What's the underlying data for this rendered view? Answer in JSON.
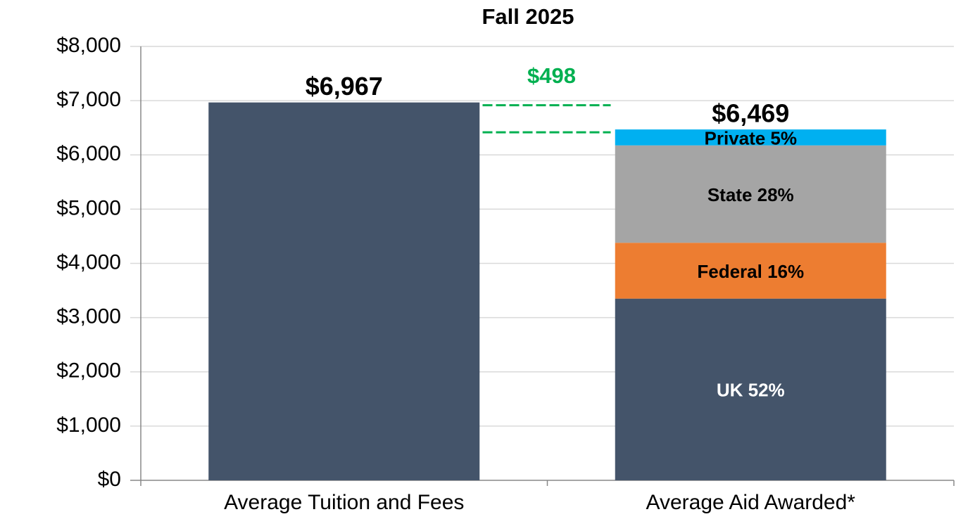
{
  "chart_data": {
    "type": "stacked_bar",
    "title": "Fall 2025",
    "categories": [
      "Average Tuition and Fees",
      "Average Aid Awarded*"
    ],
    "series": [
      {
        "color": "#44546a",
        "text_color": "#000000",
        "values": [
          6967,
          null
        ]
      },
      {
        "name": "UK 52%",
        "color": "#44546a",
        "text_color": "#ffffff",
        "values": [
          null,
          3350
        ]
      },
      {
        "name": "Federal 16%",
        "color": "#ed7d31",
        "text_color": "#000000",
        "values": [
          null,
          1030
        ]
      },
      {
        "name": "State 28%",
        "color": "#a5a5a5",
        "text_color": "#000000",
        "values": [
          null,
          1795
        ]
      },
      {
        "name": "Private 5%",
        "color": "#00b0f0",
        "text_color": "#000000",
        "values": [
          null,
          294
        ]
      }
    ],
    "totals": [
      6967,
      6469
    ],
    "total_labels": [
      "$6,967",
      "$6,469"
    ],
    "annotation": {
      "text": "$498",
      "value": 498,
      "color": "#00b050"
    },
    "ylim": [
      0,
      8000
    ],
    "yticks": [
      {
        "value": 0,
        "label": "$0"
      },
      {
        "value": 1000,
        "label": "$1,000"
      },
      {
        "value": 2000,
        "label": "$2,000"
      },
      {
        "value": 3000,
        "label": "$3,000"
      },
      {
        "value": 4000,
        "label": "$4,000"
      },
      {
        "value": 5000,
        "label": "$5,000"
      },
      {
        "value": 6000,
        "label": "$6,000"
      },
      {
        "value": 7000,
        "label": "$7,000"
      },
      {
        "value": 8000,
        "label": "$8,000"
      }
    ],
    "grid": true
  }
}
